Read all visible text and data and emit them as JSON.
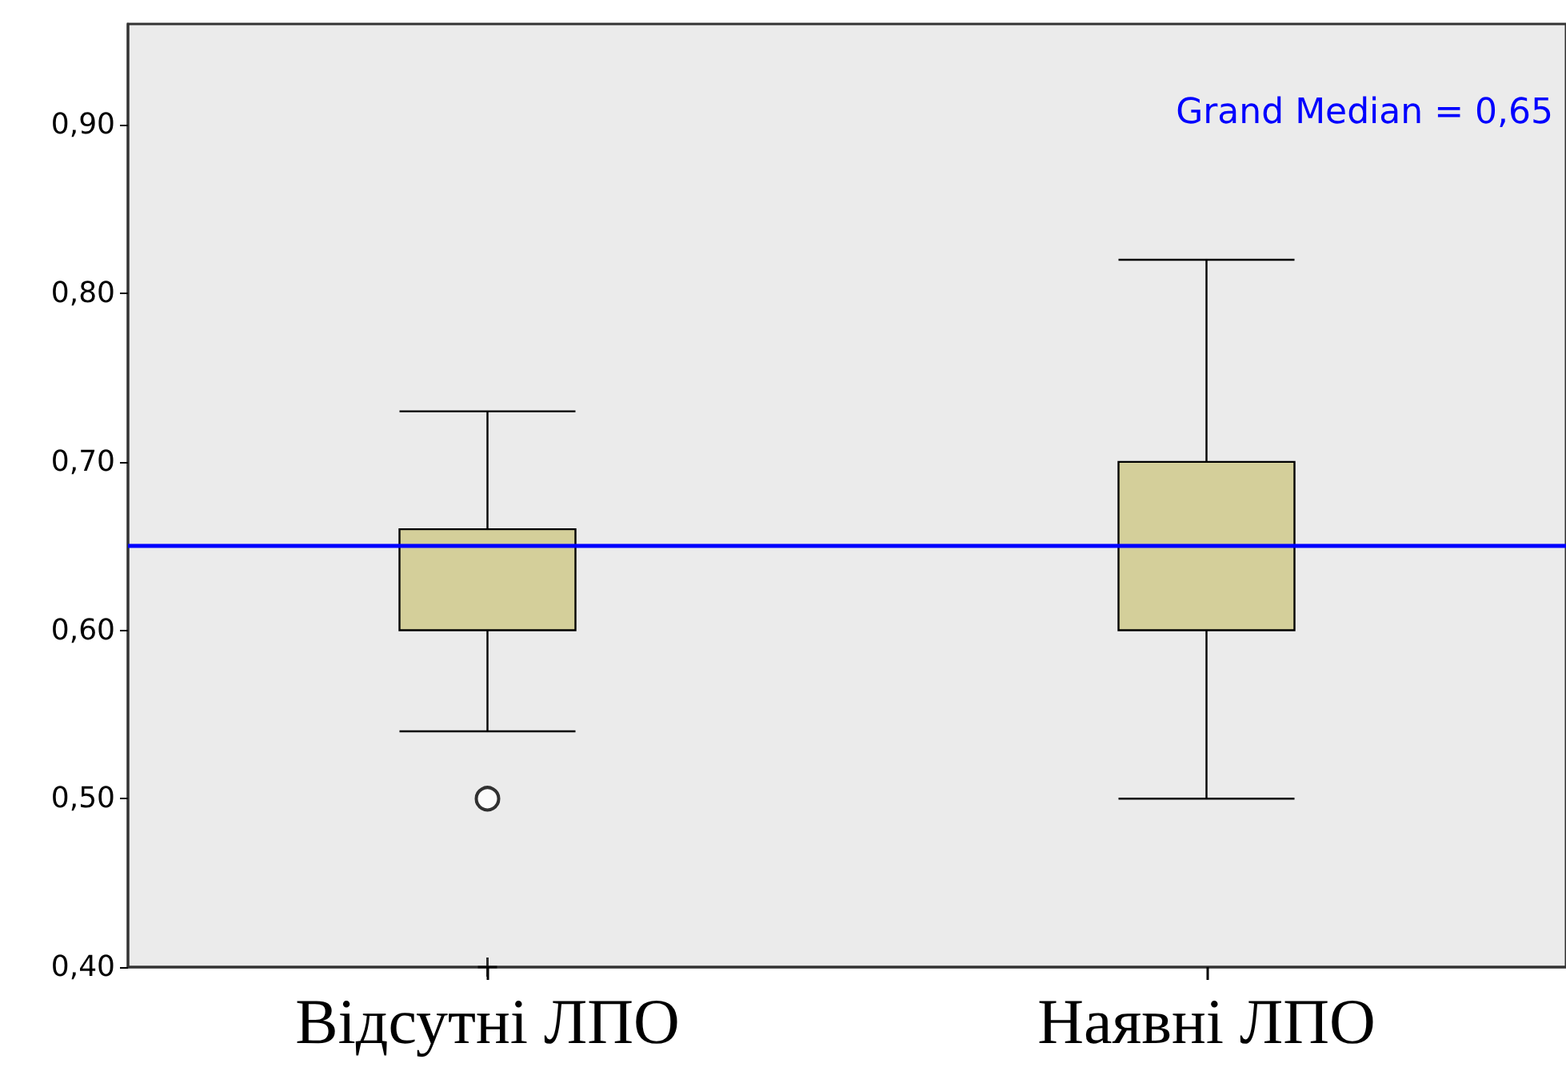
{
  "chart_data": {
    "type": "box",
    "categories": [
      "Відсутні ЛПО",
      "Наявні ЛПО"
    ],
    "series": [
      {
        "color": "#d4cf9a",
        "marker": "circle",
        "boxes": [
          {
            "low": 0.54,
            "q1": 0.6,
            "median": 0.6,
            "q3": 0.66,
            "high": 0.73,
            "outliers": [
              0.5
            ]
          },
          {
            "low": 0.5,
            "q1": 0.6,
            "median": 0.7,
            "q3": 0.7,
            "high": 0.82
          }
        ]
      },
      {
        "type": "scatter",
        "x": [
          "Відсутні ЛПО"
        ],
        "values": [
          0.4
        ],
        "color": "#000000",
        "marker": "cross"
      }
    ],
    "ylim": [
      0.4,
      0.96
    ],
    "yticks": [
      {
        "value": 0.4,
        "label": "0,40"
      },
      {
        "value": 0.5,
        "label": "0,50"
      },
      {
        "value": 0.6,
        "label": "0,60"
      },
      {
        "value": 0.7,
        "label": "0,70"
      },
      {
        "value": 0.8,
        "label": "0,80"
      },
      {
        "value": 0.9,
        "label": "0,90"
      }
    ],
    "ref_lines": [
      {
        "axis": "y",
        "value": 0.65,
        "label": "Grand Median = 0,65",
        "color": "#0000ff"
      }
    ],
    "grid": false
  }
}
